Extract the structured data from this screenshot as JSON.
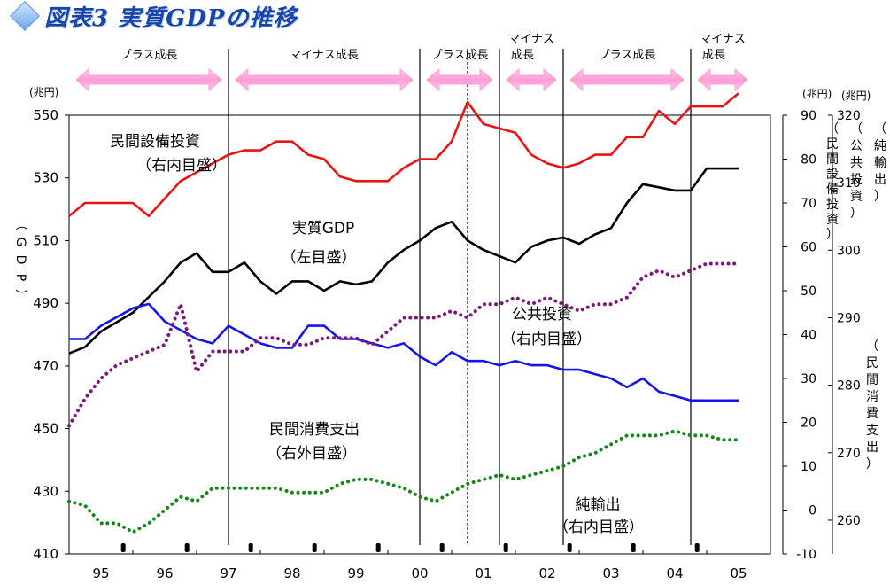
{
  "title": "図表3 実質GDPの推移",
  "phases": [
    {
      "label": "プラス成長",
      "x0": 1995.0,
      "x1": 1997.5
    },
    {
      "label": "マイナス成長",
      "x0": 1997.5,
      "x1": 2000.5
    },
    {
      "label": "プラス成長",
      "x0": 2000.5,
      "x1": 2001.75
    },
    {
      "label": "マイナス成長",
      "x0": 2001.75,
      "x1": 2002.75
    },
    {
      "label": "プラス成長",
      "x0": 2002.75,
      "x1": 2004.75
    },
    {
      "label": "マイナス成長",
      "x0": 2004.75,
      "x1": 2005.75
    }
  ],
  "chart_data": {
    "type": "line",
    "x_tick_labels": [
      "95",
      "96",
      "97",
      "98",
      "99",
      "00",
      "01",
      "02",
      "03",
      "04",
      "05"
    ],
    "units": {
      "left": "(兆円)",
      "right_inner": "(兆円)",
      "right_outer": "(兆円)"
    },
    "axes": {
      "left": {
        "label": "（GDP）",
        "ticks": [
          410,
          430,
          450,
          470,
          490,
          510,
          530,
          550
        ],
        "ylim": [
          410,
          550
        ]
      },
      "right_inner": {
        "label_a": "（民間設備投資）",
        "label_b": "（公共投資）",
        "label_c": "（純輸出）",
        "ticks": [
          -10,
          0,
          10,
          20,
          30,
          40,
          50,
          60,
          70,
          80,
          90
        ],
        "ylim": [
          -10,
          90
        ]
      },
      "right_outer": {
        "label": "（民間消費支出）",
        "ticks": [
          260,
          270,
          280,
          290,
          300,
          310,
          320
        ],
        "ylim": [
          255,
          320
        ]
      }
    },
    "series": [
      {
        "name": "民間設備投資",
        "sub": "（右内目盛）",
        "axis": "right_inner",
        "color": "#e81414",
        "style": "solid",
        "x": [
          1995.0,
          1995.25,
          1995.5,
          1995.75,
          1996.0,
          1996.25,
          1996.5,
          1996.75,
          1997.0,
          1997.25,
          1997.5,
          1997.75,
          1998.0,
          1998.25,
          1998.5,
          1998.75,
          1999.0,
          1999.25,
          1999.5,
          1999.75,
          2000.0,
          2000.25,
          2000.5,
          2000.75,
          2001.0,
          2001.25,
          2001.5,
          2001.75,
          2002.0,
          2002.25,
          2002.5,
          2002.75,
          2003.0,
          2003.25,
          2003.5,
          2003.75,
          2004.0,
          2004.25,
          2004.5,
          2004.75,
          2005.0,
          2005.25,
          2005.5
        ],
        "y": [
          67,
          70,
          70,
          70,
          70,
          67,
          71,
          75,
          77,
          79,
          81,
          82,
          82,
          84,
          84,
          81,
          80,
          76,
          75,
          75,
          75,
          78,
          80,
          80,
          84,
          93,
          88,
          87,
          86,
          81,
          79,
          78,
          79,
          81,
          81,
          85,
          85,
          91,
          88,
          92,
          92,
          92,
          95
        ]
      },
      {
        "name": "実質GDP",
        "sub": "（左目盛）",
        "axis": "left",
        "color": "#000000",
        "style": "solid",
        "x": [
          1995.0,
          1995.25,
          1995.5,
          1995.75,
          1996.0,
          1996.25,
          1996.5,
          1996.75,
          1997.0,
          1997.25,
          1997.5,
          1997.75,
          1998.0,
          1998.25,
          1998.5,
          1998.75,
          1999.0,
          1999.25,
          1999.5,
          1999.75,
          2000.0,
          2000.25,
          2000.5,
          2000.75,
          2001.0,
          2001.25,
          2001.5,
          2001.75,
          2002.0,
          2002.25,
          2002.5,
          2002.75,
          2003.0,
          2003.25,
          2003.5,
          2003.75,
          2004.0,
          2004.25,
          2004.5,
          2004.75,
          2005.0,
          2005.25,
          2005.5
        ],
        "y": [
          474,
          476,
          481,
          484,
          487,
          492,
          497,
          503,
          506,
          500,
          500,
          503,
          497,
          493,
          497,
          497,
          494,
          497,
          496,
          497,
          503,
          507,
          510,
          514,
          516,
          510,
          507,
          505,
          503,
          508,
          510,
          511,
          509,
          512,
          514,
          522,
          528,
          527,
          526,
          526,
          533,
          533,
          533
        ]
      },
      {
        "name": "公共投資",
        "sub": "（右内目盛）",
        "axis": "right_inner",
        "color": "#1515e8",
        "style": "solid",
        "x": [
          1995.0,
          1995.25,
          1995.5,
          1995.75,
          1996.0,
          1996.25,
          1996.5,
          1996.75,
          1997.0,
          1997.25,
          1997.5,
          1997.75,
          1998.0,
          1998.25,
          1998.5,
          1998.75,
          1999.0,
          1999.25,
          1999.5,
          1999.75,
          2000.0,
          2000.25,
          2000.5,
          2000.75,
          2001.0,
          2001.25,
          2001.5,
          2001.75,
          2002.0,
          2002.25,
          2002.5,
          2002.75,
          2003.0,
          2003.25,
          2003.5,
          2003.75,
          2004.0,
          2004.25,
          2004.5,
          2004.75,
          2005.0,
          2005.25,
          2005.5
        ],
        "y": [
          39,
          39,
          42,
          44,
          46,
          47,
          43,
          41,
          39,
          38,
          42,
          40,
          38,
          37,
          37,
          42,
          42,
          39,
          39,
          38,
          37,
          38,
          35,
          33,
          36,
          34,
          34,
          33,
          34,
          33,
          33,
          32,
          32,
          31,
          30,
          28,
          30,
          27,
          26,
          25,
          25,
          25,
          25
        ]
      },
      {
        "name": "民間消費支出",
        "sub": "（右外目盛）",
        "axis": "right_outer",
        "color": "#7a1a7a",
        "style": "dotted",
        "x": [
          1995.0,
          1995.25,
          1995.5,
          1995.75,
          1996.0,
          1996.25,
          1996.5,
          1996.75,
          1997.0,
          1997.25,
          1997.5,
          1997.75,
          1998.0,
          1998.25,
          1998.5,
          1998.75,
          1999.0,
          1999.25,
          1999.5,
          1999.75,
          2000.0,
          2000.25,
          2000.5,
          2000.75,
          2001.0,
          2001.25,
          2001.5,
          2001.75,
          2002.0,
          2002.25,
          2002.5,
          2002.75,
          2003.0,
          2003.25,
          2003.5,
          2003.75,
          2004.0,
          2004.25,
          2004.5,
          2004.75,
          2005.0,
          2005.25,
          2005.5
        ],
        "y": [
          274,
          278,
          281,
          283,
          284,
          285,
          286,
          292,
          282,
          285,
          285,
          285,
          287,
          287,
          286,
          286,
          287,
          287,
          287,
          286,
          288,
          290,
          290,
          290,
          291,
          290,
          292,
          292,
          293,
          292,
          293,
          292,
          291,
          292,
          292,
          293,
          296,
          297,
          296,
          297,
          298,
          298,
          298
        ]
      },
      {
        "name": "純輸出",
        "sub": "（右内目盛）",
        "axis": "right_inner",
        "color": "#15881a",
        "style": "dotted",
        "x": [
          1995.0,
          1995.25,
          1995.5,
          1995.75,
          1996.0,
          1996.25,
          1996.5,
          1996.75,
          1997.0,
          1997.25,
          1997.5,
          1997.75,
          1998.0,
          1998.25,
          1998.5,
          1998.75,
          1999.0,
          1999.25,
          1999.5,
          1999.75,
          2000.0,
          2000.25,
          2000.5,
          2000.75,
          2001.0,
          2001.25,
          2001.5,
          2001.75,
          2002.0,
          2002.25,
          2002.5,
          2002.75,
          2003.0,
          2003.25,
          2003.5,
          2003.75,
          2004.0,
          2004.25,
          2004.5,
          2004.75,
          2005.0,
          2005.25,
          2005.5
        ],
        "y": [
          2,
          1,
          -3,
          -3,
          -5,
          -3,
          0,
          3,
          2,
          5,
          5,
          5,
          5,
          5,
          4,
          4,
          4,
          6,
          7,
          7,
          6,
          5,
          3,
          2,
          4,
          6,
          7,
          8,
          7,
          8,
          9,
          10,
          12,
          13,
          15,
          17,
          17,
          17,
          18,
          17,
          17,
          16,
          16
        ]
      }
    ],
    "phase_boundaries": [
      1997.5,
      2000.5,
      2001.25,
      2001.75,
      2002.75,
      2004.75
    ],
    "annotations": [
      {
        "text": "民間設備投資",
        "sub": "（右内目盛）"
      },
      {
        "text": "実質GDP",
        "sub": "（左目盛）"
      },
      {
        "text": "公共投資",
        "sub": "（右内目盛）"
      },
      {
        "text": "民間消費支出",
        "sub": "（右外目盛）"
      },
      {
        "text": "純輸出",
        "sub": "（右内目盛）"
      }
    ]
  }
}
